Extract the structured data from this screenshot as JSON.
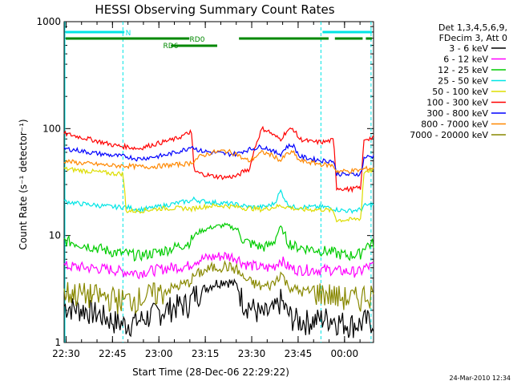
{
  "chart_data": {
    "type": "line",
    "title": "HESSI Observing Summary Count Rates",
    "xlabel": "Start Time (28-Dec-06 22:29:22)",
    "ylabel": "Count Rate (s⁻¹ detector⁻¹)",
    "yscale": "log",
    "ylim": [
      1,
      1000
    ],
    "xlim_minutes": [
      0,
      100
    ],
    "x_tick_labels": [
      "22:30",
      "22:45",
      "23:00",
      "23:15",
      "23:30",
      "23:45",
      "00:00"
    ],
    "y_tick_labels": [
      "1",
      "10",
      "100",
      "1000"
    ],
    "legend_header": [
      "Det 1,3,4,5,6,9,",
      "FDecim 3, Att 0"
    ],
    "legend_position": "right",
    "date_stamp": "24-Mar-2010 12:34",
    "flag_labels": [
      "N",
      "RD0",
      "RD6"
    ],
    "x": [
      0,
      4,
      8,
      12,
      16,
      19,
      20,
      24,
      28,
      32,
      36,
      40,
      41,
      42,
      44,
      48,
      52,
      56,
      57,
      58,
      60,
      64,
      66,
      68,
      70,
      72,
      74,
      76,
      80,
      84,
      87,
      88,
      92,
      96,
      97,
      100
    ],
    "series": [
      {
        "name": "3 - 6 keV",
        "color": "#000000",
        "values": [
          2.2,
          2.1,
          2.0,
          1.8,
          1.6,
          1.5,
          1.5,
          1.6,
          1.8,
          2.0,
          2.2,
          2.3,
          2.5,
          2.8,
          3.0,
          3.5,
          3.8,
          3.4,
          2.8,
          2.4,
          2.2,
          1.8,
          1.9,
          2.0,
          2.5,
          1.9,
          1.7,
          1.6,
          1.6,
          1.7,
          1.7,
          1.6,
          1.5,
          1.5,
          1.6,
          1.6
        ]
      },
      {
        "name": "6 - 12 keV",
        "color": "#ff00ff",
        "values": [
          5.2,
          5.1,
          5.0,
          4.9,
          4.8,
          4.6,
          4.6,
          4.5,
          4.7,
          4.9,
          5.1,
          5.2,
          5.4,
          5.8,
          6.0,
          6.3,
          6.5,
          6.2,
          5.8,
          5.5,
          5.3,
          5.0,
          5.0,
          5.2,
          6.0,
          5.2,
          4.9,
          4.8,
          4.8,
          4.8,
          4.8,
          4.7,
          4.6,
          4.6,
          5.0,
          5.2
        ]
      },
      {
        "name": "12 - 25 keV",
        "color": "#00cc00",
        "values": [
          9.0,
          8.5,
          8.0,
          7.5,
          7.0,
          6.8,
          6.8,
          6.5,
          6.8,
          7.2,
          7.8,
          8.5,
          9.0,
          10.0,
          11.0,
          12.0,
          12.5,
          11.5,
          10.0,
          9.0,
          8.5,
          7.8,
          8.0,
          9.0,
          12.0,
          9.0,
          8.0,
          7.8,
          7.5,
          7.2,
          7.0,
          6.8,
          6.5,
          6.8,
          8.0,
          8.5
        ]
      },
      {
        "name": "25 - 50 keV",
        "color": "#00e5e5",
        "values": [
          21,
          20,
          19.5,
          19,
          18.5,
          18.5,
          18.5,
          17.5,
          18,
          19,
          20,
          21,
          21,
          22,
          21,
          20.5,
          20,
          19.5,
          19,
          19,
          18.5,
          18.5,
          19,
          20,
          26,
          20,
          18.5,
          18.5,
          18.5,
          18.5,
          18,
          17.5,
          17,
          17.5,
          19,
          19.5
        ]
      },
      {
        "name": "50 - 100 keV",
        "color": "#dddd00",
        "values": [
          42,
          41,
          40,
          39,
          38,
          38,
          17,
          17,
          17.5,
          18,
          18,
          18,
          17.5,
          18,
          18.5,
          19,
          19,
          18.5,
          18.5,
          18,
          18,
          17.5,
          18,
          18.5,
          19,
          18.5,
          18,
          17.5,
          17.5,
          17.5,
          17,
          14,
          14,
          14.5,
          40,
          41
        ]
      },
      {
        "name": "100 - 300 keV",
        "color": "#ff0000",
        "values": [
          90,
          85,
          80,
          75,
          70,
          68,
          68,
          65,
          70,
          75,
          80,
          90,
          95,
          40,
          38,
          36,
          35,
          36,
          38,
          40,
          42,
          100,
          95,
          85,
          80,
          95,
          100,
          80,
          75,
          75,
          78,
          28,
          27,
          28,
          80,
          82
        ]
      },
      {
        "name": "300 - 800 keV",
        "color": "#0000ff",
        "values": [
          65,
          63,
          60,
          58,
          56,
          55,
          55,
          52,
          54,
          56,
          60,
          65,
          70,
          66,
          62,
          60,
          58,
          58,
          60,
          62,
          64,
          68,
          65,
          60,
          58,
          68,
          70,
          55,
          52,
          50,
          50,
          38,
          37,
          38,
          54,
          55
        ]
      },
      {
        "name": "800 - 7000 keV",
        "color": "#ff8800",
        "values": [
          50,
          48,
          47,
          46,
          45,
          45,
          45,
          44,
          44,
          45,
          46,
          47,
          48,
          50,
          55,
          60,
          62,
          58,
          54,
          52,
          50,
          60,
          58,
          55,
          50,
          58,
          60,
          50,
          48,
          46,
          45,
          40,
          40,
          41,
          42,
          43
        ]
      },
      {
        "name": "7000 - 20000 keV",
        "color": "#888800",
        "values": [
          3.0,
          2.9,
          2.8,
          2.7,
          2.6,
          2.5,
          2.5,
          2.6,
          2.8,
          3.0,
          3.3,
          3.6,
          3.8,
          4.2,
          4.5,
          5.0,
          5.2,
          4.8,
          4.3,
          4.0,
          3.7,
          3.3,
          3.4,
          3.6,
          4.5,
          3.5,
          3.2,
          3.0,
          3.0,
          2.9,
          2.8,
          2.7,
          2.6,
          2.6,
          2.8,
          2.9
        ]
      }
    ],
    "flags": {
      "N": {
        "color": "#00e5e5",
        "intervals": [
          [
            0,
            20
          ],
          [
            83,
            100
          ]
        ]
      },
      "RD0": {
        "color": "#008800",
        "intervals": [
          [
            0,
            41
          ],
          [
            56,
            86
          ],
          [
            87,
            97
          ],
          [
            97,
            100
          ]
        ]
      },
      "RD6": {
        "color": "#008800",
        "intervals": [
          [
            34,
            50
          ]
        ]
      }
    },
    "dashed_lines_minutes": [
      19,
      83
    ],
    "solid_line_minute": 0
  }
}
